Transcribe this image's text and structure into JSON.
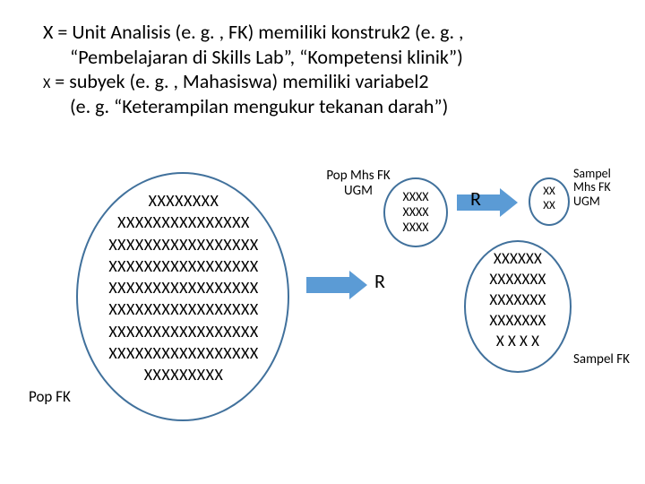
{
  "colors": {
    "oval_border": "#41719c",
    "arrow_fill": "#5b9bd5",
    "text": "#000000",
    "background": "#ffffff"
  },
  "header": {
    "line1": "X = Unit Analisis (e. g. , FK) memiliki konstruk2 (e. g. ,",
    "line2": "“Pembelajaran di Skills Lab”, “Kompetensi klinik”)",
    "line3_prefix": "X",
    "line3_rest": " = subyek (e. g. , Mahasiswa) memiliki variabel2",
    "line4": "(e. g. “Keterampilan mengukur tekanan darah”)"
  },
  "big_oval": {
    "label": "Pop FK",
    "rows": [
      "XXXXXXXX",
      "XXXXXXXXXXXXXXX",
      "XXXXXXXXXXXXXXXXX",
      "XXXXXXXXXXXXXXXXX",
      "XXXXXXXXXXXXXXXXX",
      "XXXXXXXXXXXXXXXXX",
      "XXXXXXXXXXXXXXXXX",
      "XXXXXXXXXXXXXXXXX",
      "XXXXXXXXX"
    ]
  },
  "small_oval": {
    "label_line1": "Pop Mhs FK",
    "label_line2": "UGM",
    "rows": [
      "XXXX",
      "XXXX",
      "XXXX"
    ]
  },
  "mid_oval": {
    "label": "Sampel FK",
    "rows": [
      "XXXXXX",
      "XXXXXXX",
      "XXXXXXX",
      "XXXXXXX",
      "X X  X X"
    ]
  },
  "tiny_oval": {
    "label_line1": "Sampel",
    "label_line2": "Mhs FK",
    "label_line3": "UGM",
    "rows": [
      "XX",
      "XX"
    ]
  },
  "r_labels": {
    "r1": "R",
    "r2": "R"
  }
}
